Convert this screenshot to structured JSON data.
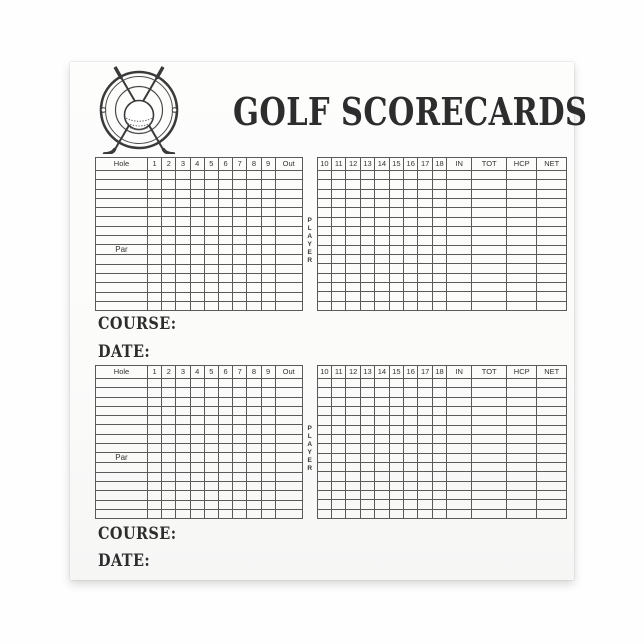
{
  "page": {
    "title": "GOLF SCORECARDS"
  },
  "logo": {
    "name": "golf-clubs-and-ball-emblem"
  },
  "scorecard": {
    "hole_label": "Hole",
    "front_nine": [
      "1",
      "2",
      "3",
      "4",
      "5",
      "6",
      "7",
      "8",
      "9"
    ],
    "out_label": "Out",
    "back_nine": [
      "10",
      "11",
      "12",
      "13",
      "14",
      "15",
      "16",
      "17",
      "18"
    ],
    "in_label": "IN",
    "tot_label": "TOT",
    "hcp_label": "HCP",
    "net_label": "NET",
    "player_label": "PLAYER",
    "par_label": "Par",
    "body_rows": 15,
    "par_row": 9,
    "cards": 2,
    "course_label": "COURSE:",
    "date_label": "DATE:"
  },
  "colors": {
    "ink": "#2d2d2d",
    "grid": "#5a5a5a",
    "page": "#fbfbfa"
  }
}
